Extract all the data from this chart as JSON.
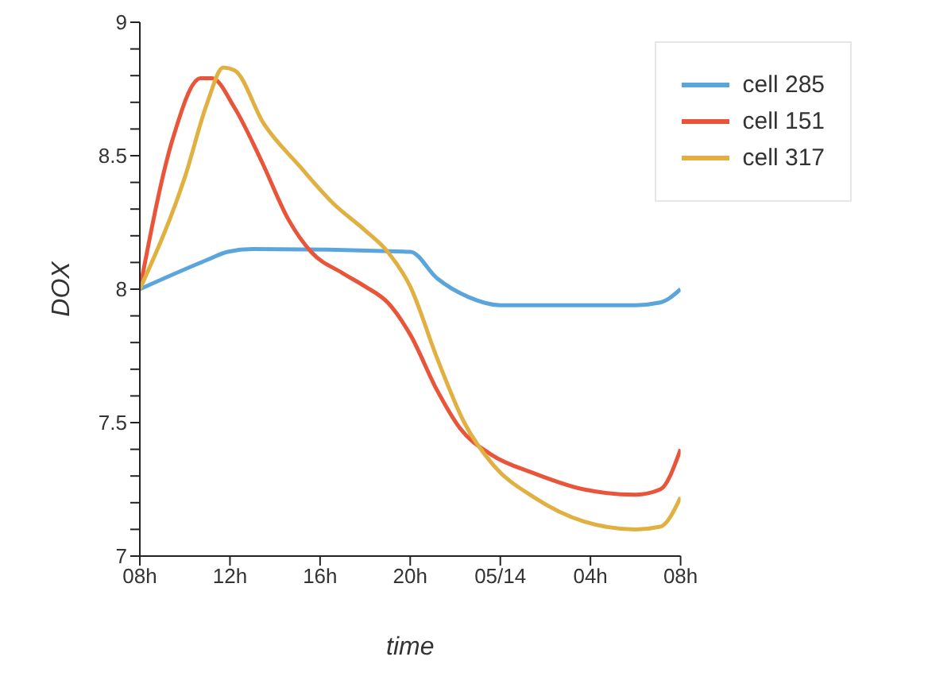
{
  "chart_data": {
    "type": "line",
    "xlabel": "time",
    "ylabel": "DOX",
    "xlim": [
      "--05-13T08:00",
      "--05-14T08:00"
    ],
    "xticks": [
      {
        "value": "--05-13T08:00",
        "label": "08h"
      },
      {
        "value": "--05-13T12:00",
        "label": "12h"
      },
      {
        "value": "--05-13T16:00",
        "label": "16h"
      },
      {
        "value": "--05-13T20:00",
        "label": "20h"
      },
      {
        "value": "--05-14T00:00",
        "label": "05/14"
      },
      {
        "value": "--05-14T04:00",
        "label": "04h"
      },
      {
        "value": "--05-14T08:00",
        "label": "08h"
      }
    ],
    "ylim": [
      7,
      9
    ],
    "yticks": [
      7,
      {
        "value": 7.1,
        "label": null
      },
      {
        "value": 7.2,
        "label": null
      },
      {
        "value": 7.3,
        "label": null
      },
      {
        "value": 7.4,
        "label": null
      },
      7.5,
      {
        "value": 7.6,
        "label": null
      },
      {
        "value": 7.7,
        "label": null
      },
      {
        "value": 7.8,
        "label": null
      },
      {
        "value": 7.9,
        "label": null
      },
      8,
      {
        "value": 8.1,
        "label": null
      },
      {
        "value": 8.2,
        "label": null
      },
      {
        "value": 8.3,
        "label": null
      },
      {
        "value": 8.4,
        "label": null
      },
      8.5,
      {
        "value": 8.6,
        "label": null
      },
      {
        "value": 8.7,
        "label": null
      },
      {
        "value": 8.8,
        "label": null
      },
      {
        "value": 8.9,
        "label": null
      },
      9
    ],
    "grid": false,
    "legend": "top right",
    "marker": "none",
    "line_style": "solid",
    "series": [
      {
        "name": "cell 285",
        "color": "#5aa5dc",
        "x": [
          "--05-13T08:00",
          "--05-13T11:00",
          "--05-13T11:54",
          "--05-13T13:00",
          "--05-13T20:00",
          "--05-13T21:12",
          "--05-13T22:36",
          "--05-14T00:00",
          "--05-14T06:00",
          "--05-14T07:06",
          "--05-14T08:00"
        ],
        "values": [
          8,
          8.11,
          8.14,
          8.15,
          8.14,
          8.04,
          7.97,
          7.94,
          7.94,
          7.95,
          8
        ]
      },
      {
        "name": "cell 151",
        "color": "#e8553a",
        "x": [
          "--05-13T08:00",
          "--05-13T09:27",
          "--05-13T10:42",
          "--05-13T11:12",
          "--05-13T12:12",
          "--05-13T13:24",
          "--05-13T14:36",
          "--05-13T15:36",
          "--05-13T17:00",
          "--05-13T18:00",
          "--05-13T19:00",
          "--05-13T20:00",
          "--05-13T21:12",
          "--05-13T22:12",
          "--05-13T23:36",
          "--05-14T01:30",
          "--05-14T03:42",
          "--05-14T06:00",
          "--05-14T07:06",
          "--05-14T08:00"
        ],
        "values": [
          8,
          8.56,
          8.79,
          8.79,
          8.68,
          8.48,
          8.26,
          8.14,
          8.06,
          8.01,
          7.95,
          7.83,
          7.62,
          7.48,
          7.38,
          7.31,
          7.25,
          7.23,
          7.25,
          7.4
        ]
      },
      {
        "name": "cell 317",
        "color": "#e0b040",
        "x": [
          "--05-13T08:00",
          "--05-13T10:00",
          "--05-13T11:00",
          "--05-13T11:42",
          "--05-13T12:12",
          "--05-13T13:30",
          "--05-13T15:06",
          "--05-13T16:36",
          "--05-13T18:00",
          "--05-13T19:00",
          "--05-13T20:00",
          "--05-13T21:12",
          "--05-13T22:24",
          "--05-13T23:42",
          "--05-14T01:30",
          "--05-14T03:42",
          "--05-14T06:00",
          "--05-14T07:06",
          "--05-14T08:00"
        ],
        "values": [
          8,
          8.42,
          8.7,
          8.83,
          8.82,
          8.62,
          8.46,
          8.32,
          8.22,
          8.14,
          8.01,
          7.74,
          7.5,
          7.34,
          7.22,
          7.13,
          7.1,
          7.11,
          7.22
        ]
      }
    ]
  }
}
